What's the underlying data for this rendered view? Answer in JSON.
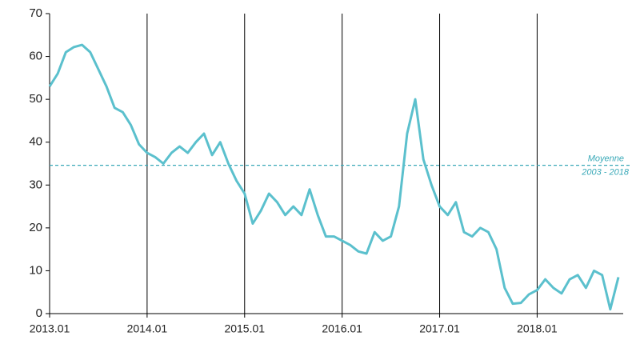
{
  "chart_data": {
    "type": "line",
    "categories": [
      "2013.01",
      null,
      null,
      null,
      null,
      null,
      null,
      null,
      null,
      null,
      null,
      null,
      "2014.01",
      null,
      null,
      null,
      null,
      null,
      null,
      null,
      null,
      null,
      null,
      null,
      "2015.01",
      null,
      null,
      null,
      null,
      null,
      null,
      null,
      null,
      null,
      null,
      null,
      "2016.01",
      null,
      null,
      null,
      null,
      null,
      null,
      null,
      null,
      null,
      null,
      null,
      "2017.01",
      null,
      null,
      null,
      null,
      null,
      null,
      null,
      null,
      null,
      null,
      null,
      "2018.01",
      null,
      null,
      null,
      null,
      null,
      null,
      null,
      null,
      null,
      null
    ],
    "series": [
      {
        "color": "#5bc0cd",
        "values": [
          53,
          56,
          61,
          62.2,
          62.7,
          61,
          57,
          53,
          48,
          47,
          44,
          39.5,
          37.5,
          36.5,
          35,
          37.5,
          39,
          37.5,
          40,
          42,
          37,
          40,
          35,
          31,
          28,
          21,
          24,
          28,
          26,
          23,
          25,
          23,
          29,
          23,
          18,
          18,
          17,
          16,
          14.5,
          14,
          19,
          17,
          18,
          25,
          42,
          50,
          36,
          30,
          25,
          23,
          26,
          19,
          18,
          20,
          19,
          15,
          6,
          2.3,
          2.5,
          4.5,
          5.5,
          8,
          6,
          4.7,
          8,
          9,
          6,
          10,
          9,
          1,
          8.5
        ]
      }
    ],
    "ylim": [
      0,
      70
    ],
    "yticks": [
      0,
      10,
      20,
      30,
      40,
      50,
      60,
      70
    ],
    "reference_line": 34.6,
    "annotations": [
      "Moyenne",
      "2003 - 2018"
    ],
    "vertical_grid": true
  }
}
